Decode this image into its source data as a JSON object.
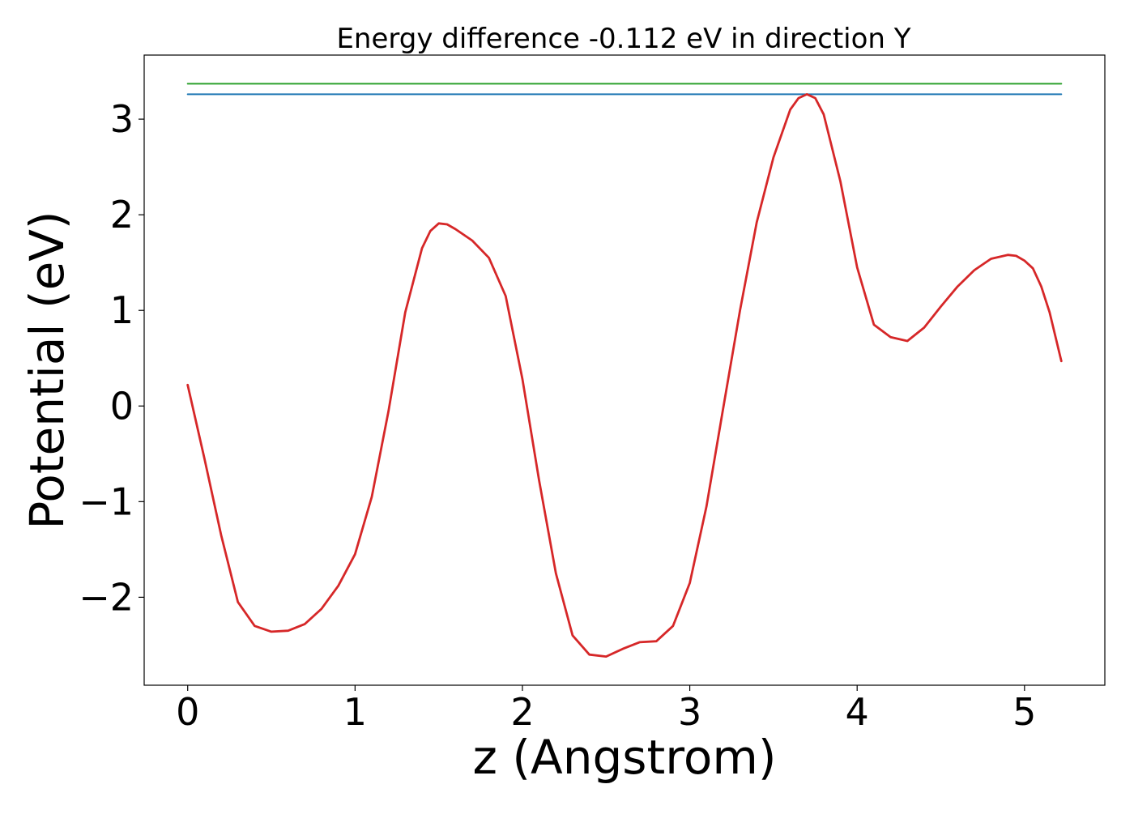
{
  "chart_data": {
    "type": "line",
    "title": "Energy difference -0.112 eV in direction Y",
    "xlabel": "z (Angstrom)",
    "ylabel": "Potential (eV)",
    "xlim": [
      -0.26,
      5.48
    ],
    "ylim": [
      -2.92,
      3.67
    ],
    "grid": false,
    "xticks": [
      0,
      1,
      2,
      3,
      4,
      5
    ],
    "xtick_labels": [
      "0",
      "1",
      "2",
      "3",
      "4",
      "5"
    ],
    "yticks": [
      -2,
      -1,
      0,
      1,
      2,
      3
    ],
    "ytick_labels": [
      "−2",
      "−1",
      "0",
      "1",
      "2",
      "3"
    ],
    "series": [
      {
        "color": "#2ca02c",
        "x": [
          0,
          5.22
        ],
        "y": [
          3.37,
          3.37
        ]
      },
      {
        "color": "#1f77b4",
        "x": [
          0,
          5.22
        ],
        "y": [
          3.26,
          3.26
        ]
      },
      {
        "color": "#d62728",
        "x": [
          0,
          0.1,
          0.2,
          0.3,
          0.4,
          0.5,
          0.6,
          0.7,
          0.8,
          0.9,
          1.0,
          1.1,
          1.2,
          1.3,
          1.4,
          1.45,
          1.5,
          1.55,
          1.6,
          1.7,
          1.8,
          1.9,
          2.0,
          2.1,
          2.2,
          2.3,
          2.4,
          2.5,
          2.6,
          2.7,
          2.8,
          2.9,
          3.0,
          3.1,
          3.2,
          3.3,
          3.4,
          3.5,
          3.6,
          3.65,
          3.7,
          3.75,
          3.8,
          3.9,
          4.0,
          4.1,
          4.2,
          4.3,
          4.4,
          4.5,
          4.6,
          4.7,
          4.8,
          4.9,
          4.95,
          5.0,
          5.05,
          5.1,
          5.15,
          5.22
        ],
        "y": [
          0.22,
          -0.55,
          -1.35,
          -2.05,
          -2.3,
          -2.36,
          -2.35,
          -2.28,
          -2.12,
          -1.88,
          -1.55,
          -0.95,
          -0.05,
          0.98,
          1.65,
          1.83,
          1.91,
          1.9,
          1.85,
          1.73,
          1.55,
          1.15,
          0.28,
          -0.78,
          -1.75,
          -2.4,
          -2.6,
          -2.62,
          -2.54,
          -2.47,
          -2.46,
          -2.3,
          -1.85,
          -1.05,
          -0.02,
          1.0,
          1.92,
          2.6,
          3.1,
          3.22,
          3.26,
          3.22,
          3.05,
          2.35,
          1.45,
          0.85,
          0.72,
          0.68,
          0.82,
          1.04,
          1.25,
          1.42,
          1.54,
          1.58,
          1.57,
          1.52,
          1.44,
          1.25,
          0.98,
          0.47
        ]
      }
    ]
  }
}
